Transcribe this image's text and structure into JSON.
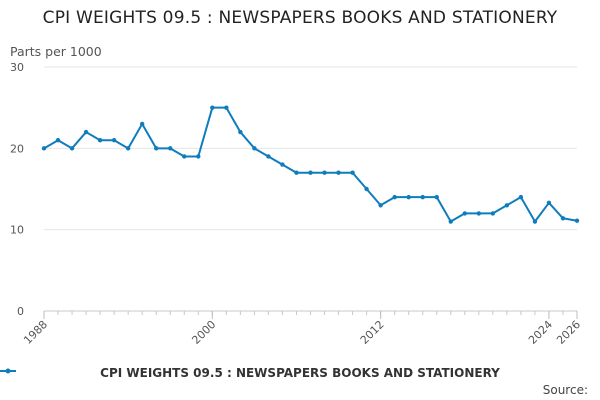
{
  "chart_data": {
    "type": "line",
    "title": "CPI WEIGHTS 09.5 : NEWSPAPERS BOOKS AND STATIONERY",
    "ylabel": "Parts per 1000",
    "xlabel": "",
    "ylim": [
      0,
      30
    ],
    "yticks": [
      0,
      10,
      20,
      30
    ],
    "xlim": [
      1988,
      2026
    ],
    "xticks": [
      1988,
      2000,
      2012,
      2024,
      2026
    ],
    "grid": true,
    "legend_position": "bottom-center",
    "series": [
      {
        "name": "CPI WEIGHTS 09.5 : NEWSPAPERS BOOKS AND STATIONERY",
        "color": "#0f7dbd",
        "x": [
          1988,
          1989,
          1990,
          1991,
          1992,
          1993,
          1994,
          1995,
          1996,
          1997,
          1998,
          1999,
          2000,
          2001,
          2002,
          2003,
          2004,
          2005,
          2006,
          2007,
          2008,
          2009,
          2010,
          2011,
          2012,
          2013,
          2014,
          2015,
          2016,
          2017,
          2018,
          2019,
          2020,
          2021,
          2022,
          2023,
          2024,
          2025,
          2026
        ],
        "values": [
          20,
          21,
          20,
          22,
          21,
          21,
          20,
          23,
          20,
          20,
          19,
          19,
          25,
          25,
          22,
          20,
          19,
          18,
          17,
          17,
          17,
          17,
          17,
          15,
          13,
          14,
          14,
          14,
          14,
          11,
          12,
          12,
          12,
          13,
          14,
          11,
          13.3,
          11.4,
          11.1
        ]
      }
    ]
  },
  "source_label": "Source:"
}
